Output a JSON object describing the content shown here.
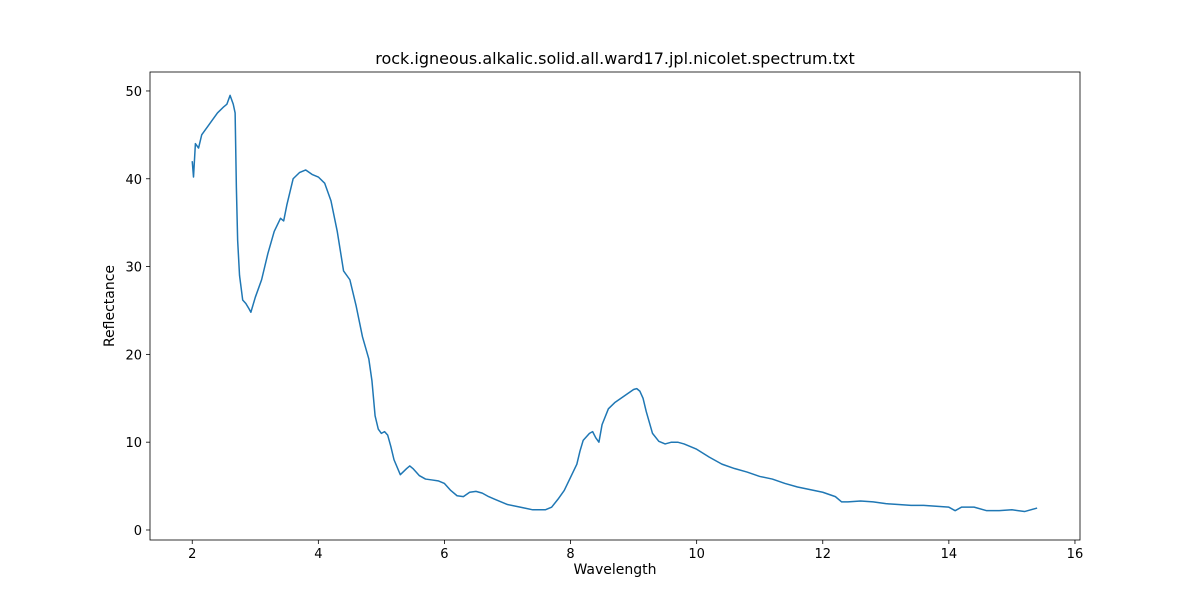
{
  "chart_data": {
    "type": "line",
    "title": "rock.igneous.alkalic.solid.all.ward17.jpl.nicolet.spectrum.txt",
    "xlabel": "Wavelength",
    "ylabel": "Reflectance",
    "xlim": [
      1.33,
      16.08
    ],
    "ylim": [
      -1.14,
      52.16
    ],
    "xticks": [
      2,
      4,
      6,
      8,
      10,
      12,
      14,
      16
    ],
    "yticks": [
      0,
      10,
      20,
      30,
      40,
      50
    ],
    "x": [
      2.0,
      2.02,
      2.05,
      2.1,
      2.15,
      2.2,
      2.3,
      2.4,
      2.5,
      2.55,
      2.6,
      2.65,
      2.68,
      2.7,
      2.72,
      2.75,
      2.8,
      2.85,
      2.9,
      2.93,
      3.0,
      3.1,
      3.2,
      3.3,
      3.4,
      3.45,
      3.5,
      3.55,
      3.6,
      3.7,
      3.8,
      3.9,
      4.0,
      4.1,
      4.2,
      4.3,
      4.4,
      4.5,
      4.6,
      4.7,
      4.8,
      4.85,
      4.9,
      4.95,
      5.0,
      5.05,
      5.1,
      5.15,
      5.2,
      5.3,
      5.4,
      5.45,
      5.5,
      5.6,
      5.7,
      5.8,
      5.9,
      6.0,
      6.1,
      6.2,
      6.3,
      6.4,
      6.5,
      6.6,
      6.7,
      6.8,
      6.9,
      7.0,
      7.2,
      7.4,
      7.6,
      7.7,
      7.8,
      7.9,
      8.0,
      8.1,
      8.15,
      8.2,
      8.3,
      8.35,
      8.4,
      8.45,
      8.5,
      8.6,
      8.7,
      8.8,
      8.9,
      9.0,
      9.05,
      9.1,
      9.15,
      9.2,
      9.3,
      9.4,
      9.5,
      9.6,
      9.7,
      9.8,
      9.9,
      10.0,
      10.2,
      10.4,
      10.6,
      10.8,
      11.0,
      11.2,
      11.4,
      11.6,
      11.8,
      12.0,
      12.2,
      12.3,
      12.4,
      12.6,
      12.8,
      13.0,
      13.2,
      13.4,
      13.6,
      13.8,
      14.0,
      14.1,
      14.2,
      14.4,
      14.6,
      14.8,
      15.0,
      15.2,
      15.4
    ],
    "series": [
      {
        "name": "Reflectance",
        "color": "#1f77b4",
        "values": [
          42,
          40.2,
          44,
          43.5,
          45,
          45.5,
          46.5,
          47.5,
          48.2,
          48.5,
          49.5,
          48.5,
          47.5,
          39,
          33,
          29,
          26.2,
          25.8,
          25.2,
          24.8,
          26.5,
          28.5,
          31.5,
          34,
          35.5,
          35.2,
          37,
          38.5,
          40,
          40.7,
          41,
          40.5,
          40.2,
          39.5,
          37.5,
          34,
          29.5,
          28.5,
          25.5,
          22,
          19.5,
          17,
          13,
          11.5,
          11,
          11.2,
          10.8,
          9.5,
          8,
          6.3,
          7,
          7.3,
          7,
          6.2,
          5.8,
          5.7,
          5.6,
          5.3,
          4.5,
          3.9,
          3.8,
          4.3,
          4.4,
          4.2,
          3.8,
          3.5,
          3.2,
          2.9,
          2.6,
          2.3,
          2.3,
          2.6,
          3.5,
          4.5,
          6,
          7.5,
          9,
          10.2,
          11,
          11.2,
          10.5,
          10,
          12,
          13.8,
          14.5,
          15,
          15.5,
          16,
          16.1,
          15.8,
          15,
          13.5,
          11,
          10.1,
          9.8,
          10,
          10,
          9.8,
          9.5,
          9.2,
          8.3,
          7.5,
          7,
          6.6,
          6.1,
          5.8,
          5.3,
          4.9,
          4.6,
          4.3,
          3.8,
          3.2,
          3.2,
          3.3,
          3.2,
          3.0,
          2.9,
          2.8,
          2.8,
          2.7,
          2.6,
          2.2,
          2.6,
          2.6,
          2.2,
          2.2,
          2.3,
          2.1,
          2.5
        ]
      }
    ]
  }
}
